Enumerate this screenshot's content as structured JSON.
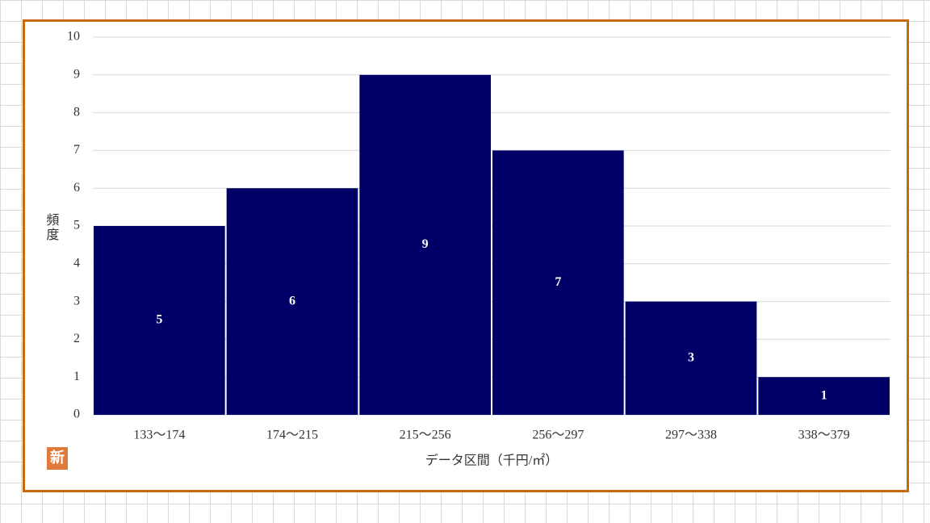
{
  "chart_data": {
    "type": "bar",
    "y_label": "頻度",
    "x_label": "データ区間（千円/㎡）",
    "badge": "新",
    "categories": [
      "133～174",
      "174～215",
      "215～256",
      "256～297",
      "297～338",
      "338～379"
    ],
    "values": [
      5,
      6,
      9,
      7,
      3,
      1
    ],
    "color": "#000066",
    "ylim": [
      0,
      10
    ],
    "yticks": [
      0,
      1,
      2,
      3,
      4,
      5,
      6,
      7,
      8,
      9,
      10
    ],
    "grid": true,
    "data_labels": true
  }
}
